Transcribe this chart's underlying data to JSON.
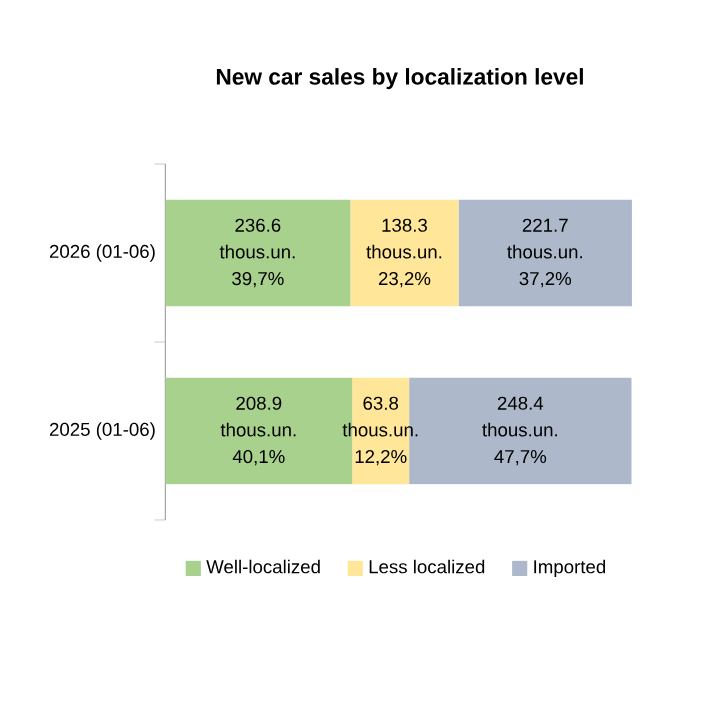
{
  "chart_data": {
    "type": "bar",
    "orientation": "horizontal",
    "stacked": true,
    "title": "New car sales by localization level",
    "categories": [
      "2026 (01-06)",
      "2025 (01-06)"
    ],
    "series": [
      {
        "name": "Well-localized",
        "color": "#a9d18e",
        "values": [
          39.7,
          40.1
        ],
        "value_labels": [
          "236.6 thous.un. 39,7%",
          "208.9 thous.un. 40,1%"
        ]
      },
      {
        "name": "Less localized",
        "color": "#ffe699",
        "values": [
          23.2,
          12.2
        ],
        "value_labels": [
          "138.3 thous.un. 23,2%",
          "63.8 thous.un. 12,2%"
        ]
      },
      {
        "name": "Imported",
        "color": "#adb9ca",
        "values": [
          37.2,
          47.7
        ],
        "value_labels": [
          "221.7 thous.un. 37,2%",
          "248.4 thous.un. 47,7%"
        ]
      }
    ],
    "legend": "bottom"
  }
}
